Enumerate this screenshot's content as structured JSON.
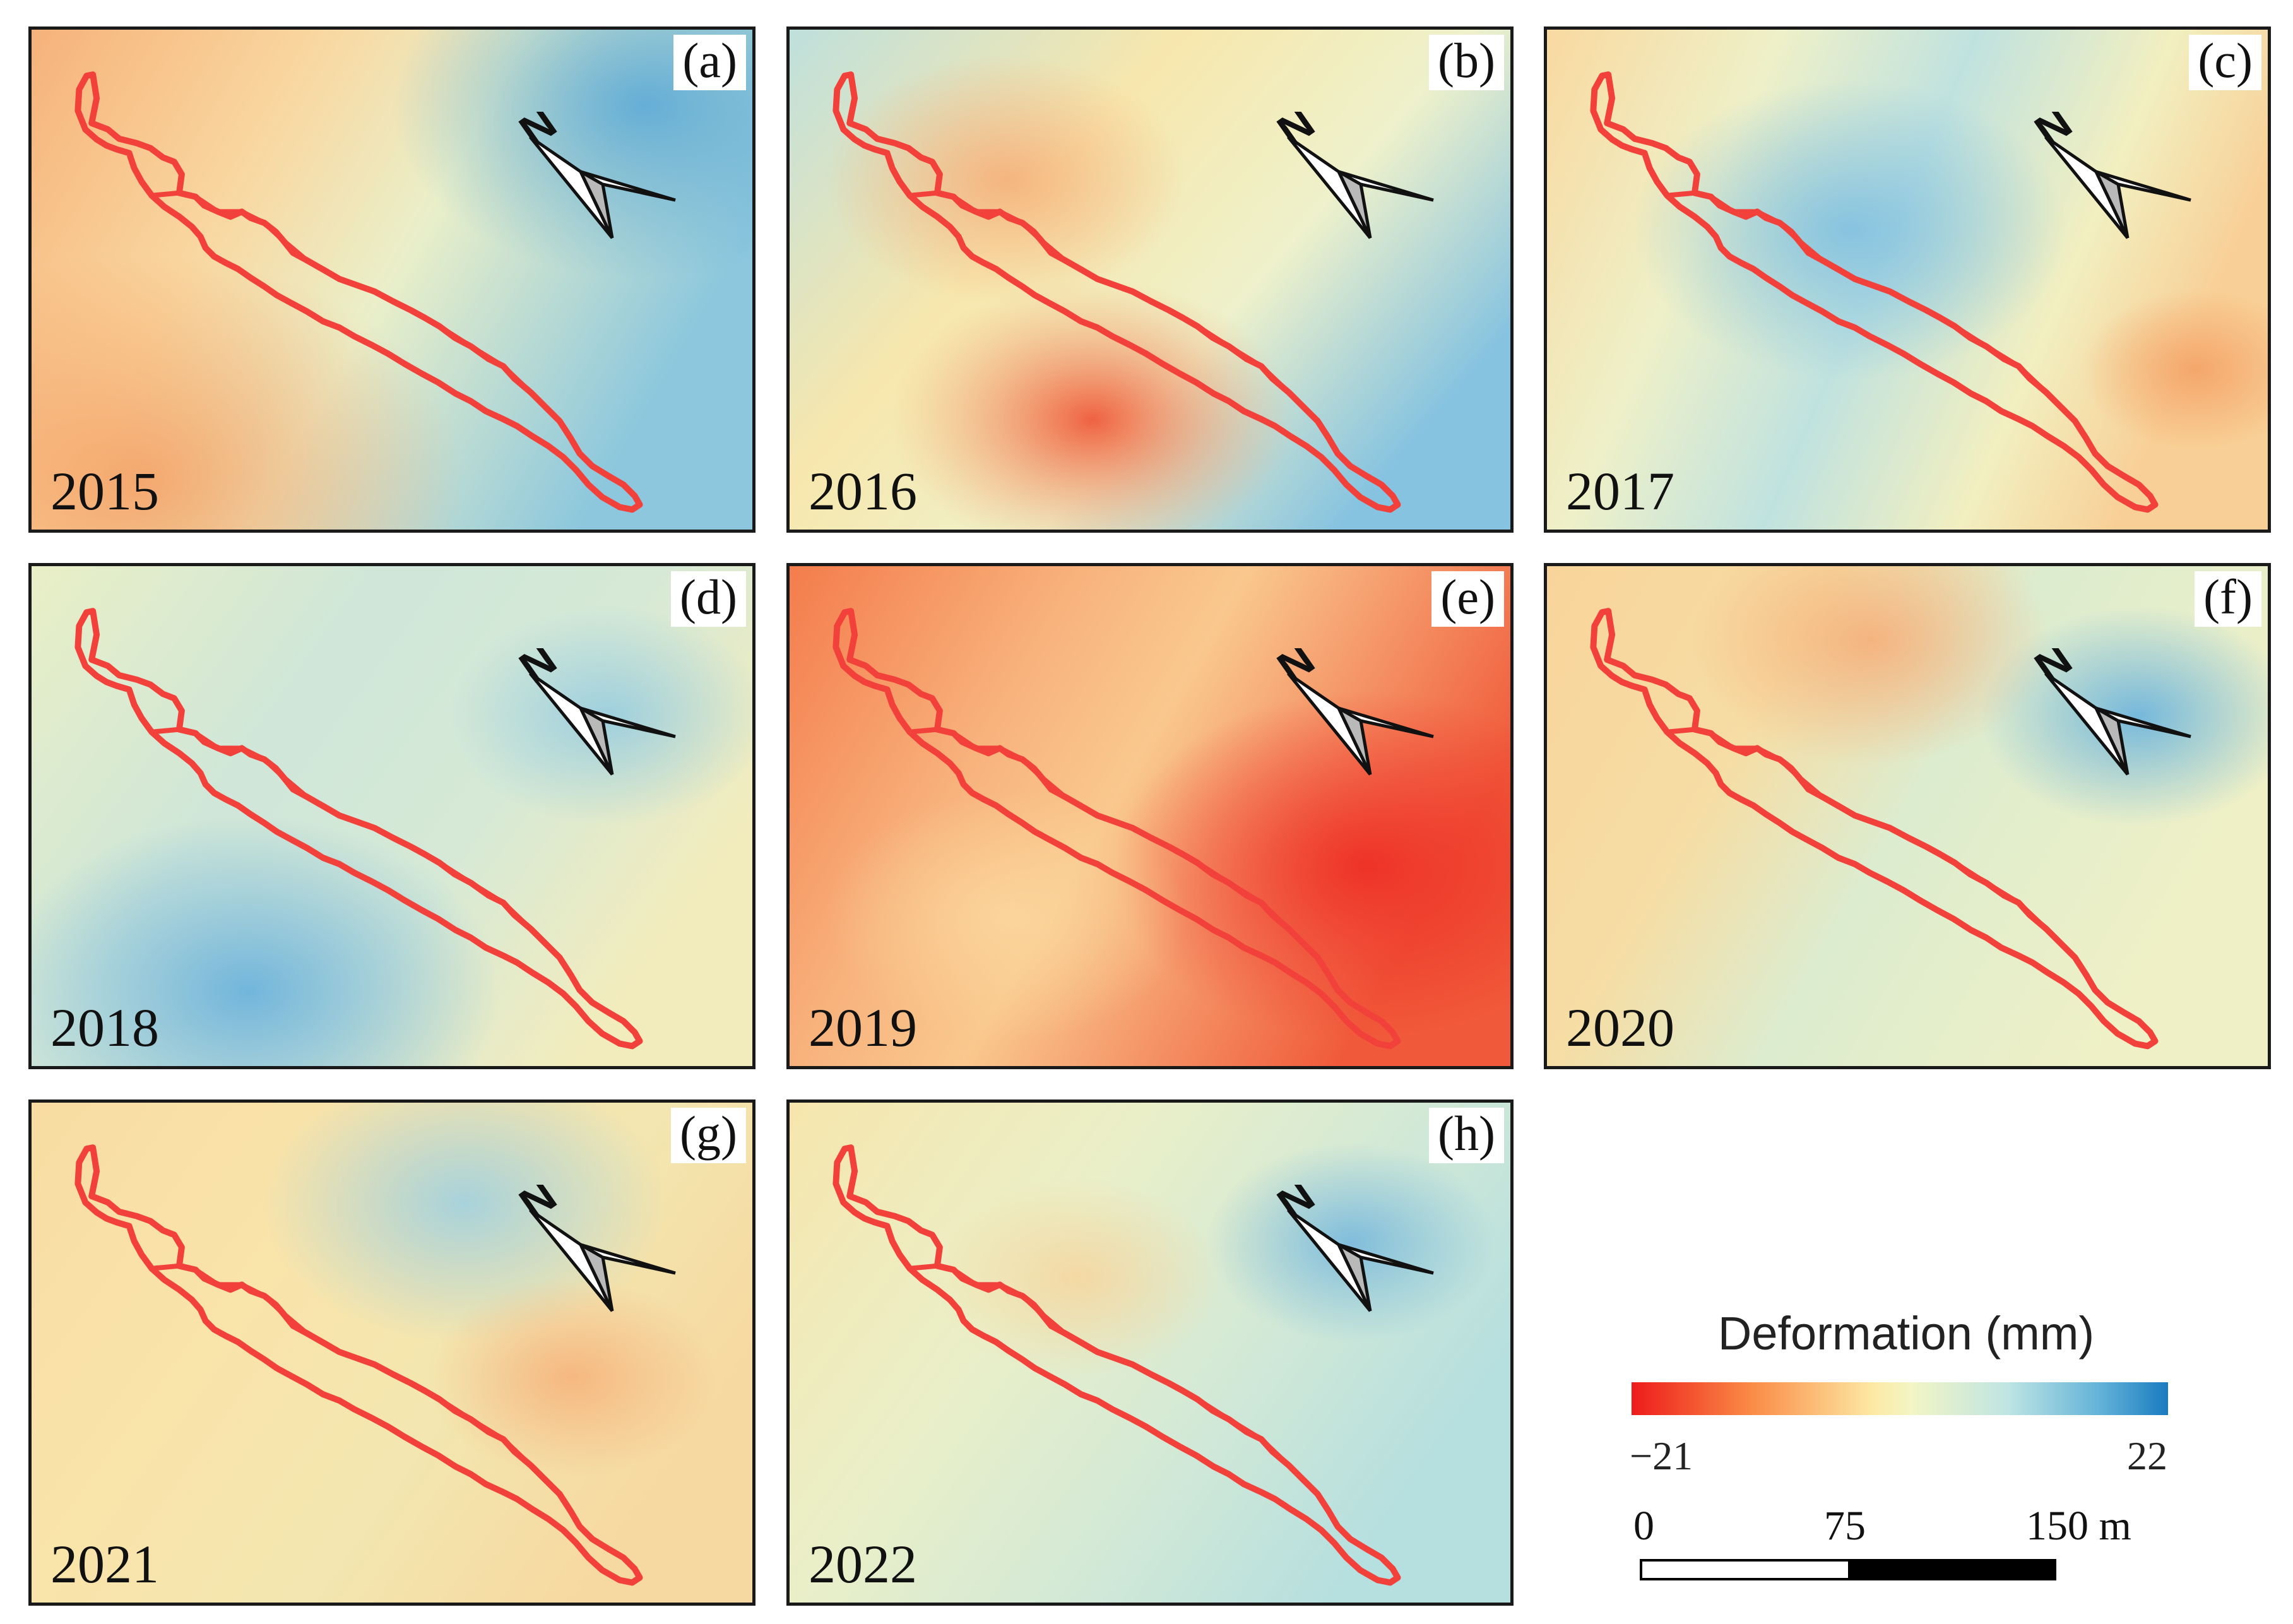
{
  "panels": [
    {
      "letter": "(a)",
      "year": "2015"
    },
    {
      "letter": "(b)",
      "year": "2016"
    },
    {
      "letter": "(c)",
      "year": "2017"
    },
    {
      "letter": "(d)",
      "year": "2018"
    },
    {
      "letter": "(e)",
      "year": "2019"
    },
    {
      "letter": "(f)",
      "year": "2020"
    },
    {
      "letter": "(g)",
      "year": "2021"
    },
    {
      "letter": "(h)",
      "year": "2022"
    }
  ],
  "north_arrow": {
    "label": "N",
    "icon": "north-arrow-icon"
  },
  "legend": {
    "title": "Deformation (mm)",
    "min_label": "−21",
    "max_label": "22",
    "min": -21,
    "max": 22,
    "colors": [
      "#ee1b1b",
      "#fa8a45",
      "#fde9a4",
      "#bfe5e3",
      "#1a7bc0"
    ]
  },
  "scale": {
    "labels": [
      "0",
      "75",
      "150 m"
    ],
    "segment_colors": [
      "#ffffff",
      "#000000",
      "#000000"
    ]
  },
  "outline_color": "#f2413b"
}
